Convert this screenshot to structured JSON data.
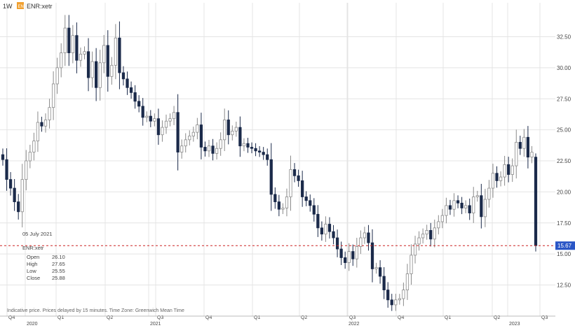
{
  "header": {
    "interval": "1W",
    "badge": "EN",
    "symbol": "ENR:xetr"
  },
  "info_box": {
    "date": "05 July 2021",
    "symbol": "ENR:xetr",
    "rows": [
      {
        "label": "Open",
        "value": "26.10"
      },
      {
        "label": "High",
        "value": "27.65"
      },
      {
        "label": "Low",
        "value": "25.55"
      },
      {
        "label": "Close",
        "value": "25.88"
      }
    ]
  },
  "footer_note": "Indicative price. Prices delayed by 15 minutes.   Time Zone: Greenwich Mean Time",
  "colors": {
    "up": "#ffffff",
    "up_border": "#8a8a8a",
    "down": "#1b2a4a",
    "current": "#2a56c6",
    "dashed": "#cc2222",
    "badge": "#f0a030"
  },
  "chart_data": {
    "type": "candlestick",
    "ylim": [
      10.5,
      34.5
    ],
    "yticks": [
      "12.50",
      "15.00",
      "17.50",
      "20.00",
      "22.50",
      "25.00",
      "27.50",
      "30.00",
      "32.50"
    ],
    "xticks": [
      "Q4",
      "2020",
      "Q1",
      "Q2",
      "2021",
      "Q3",
      "Q4",
      "Q1",
      "Q2",
      "2022",
      "Q3",
      "Q4",
      "Q1",
      "Q2",
      "2023",
      "Q3"
    ],
    "current_price": "15.67",
    "grid": true,
    "series_close": [
      22.6,
      21.0,
      20.3,
      19.2,
      18.4,
      21.0,
      22.5,
      23.2,
      24.1,
      25.6,
      25.3,
      25.8,
      26.8,
      28.7,
      30.0,
      31.2,
      33.2,
      31.2,
      32.6,
      30.6,
      31.1,
      31.3,
      29.2,
      30.5,
      28.4,
      30.4,
      31.8,
      29.3,
      30.2,
      32.4,
      29.6,
      29.1,
      28.4,
      28.0,
      27.3,
      26.9,
      26.0,
      26.1,
      25.7,
      25.9,
      24.6,
      25.2,
      25.7,
      25.9,
      26.4,
      23.2,
      23.7,
      24.2,
      24.5,
      24.8,
      25.4,
      23.6,
      23.3,
      23.7,
      23.1,
      23.5,
      24.2,
      25.8,
      24.6,
      24.9,
      25.2,
      23.7,
      23.9,
      23.6,
      23.5,
      23.3,
      23.2,
      23.0,
      22.6,
      19.8,
      19.2,
      18.6,
      18.7,
      19.6,
      21.8,
      21.3,
      20.9,
      19.6,
      19.3,
      18.9,
      18.2,
      17.1,
      16.6,
      17.4,
      16.8,
      16.3,
      15.4,
      14.7,
      14.3,
      15.2,
      14.6,
      15.6,
      16.3,
      16.7,
      15.9,
      13.8,
      13.9,
      13.2,
      12.1,
      11.3,
      10.9,
      11.3,
      11.4,
      12.1,
      13.4,
      14.9,
      15.8,
      16.3,
      16.6,
      16.9,
      16.2,
      17.1,
      17.6,
      18.1,
      18.9,
      18.6,
      19.3,
      19.1,
      18.7,
      18.9,
      18.3,
      19.6,
      19.7,
      18.0,
      19.4,
      20.3,
      21.5,
      20.9,
      21.2,
      22.2,
      21.4,
      22.1,
      24.0,
      23.5,
      24.4,
      22.8,
      23.2,
      15.7
    ],
    "last_bar": {
      "open": 22.8,
      "high": 23.1,
      "low": 15.2,
      "close": 15.67
    }
  }
}
